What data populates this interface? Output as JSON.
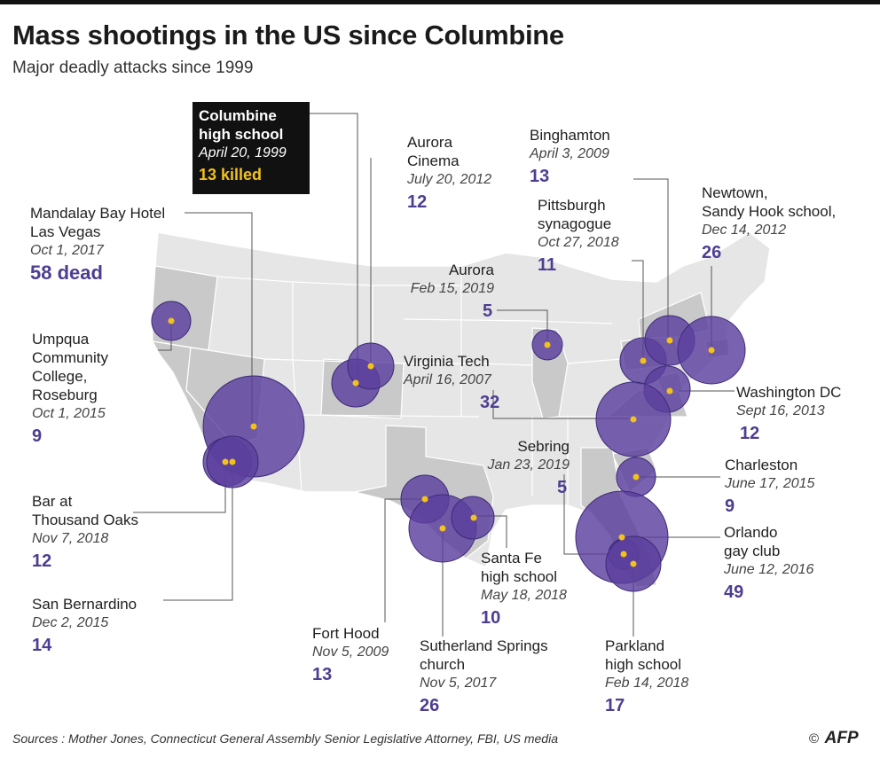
{
  "header": {
    "title": "Mass shootings in the US since Columbine",
    "subtitle": "Major deadly attacks since 1999"
  },
  "colors": {
    "bubble_fill": "#5b3f9e",
    "bubble_stroke": "#3d2a78",
    "marker_dot": "#f2c21b",
    "highlight_state": "#c9c9c9",
    "other_state": "#e6e6e6",
    "label_number": "#4e3d91",
    "columbine_bg": "#111111",
    "columbine_count": "#f2c21b"
  },
  "columbine": {
    "name_line1": "Columbine",
    "name_line2": "high school",
    "date": "April 20, 1999",
    "killed": "13 killed"
  },
  "events": [
    {
      "id": "mandalay",
      "name1": "Mandalay Bay Hotel",
      "name2": "Las Vegas",
      "date": "Oct 1, 2017",
      "count": "58 dead",
      "victims": 58
    },
    {
      "id": "umpqua",
      "name1": "Umpqua",
      "name2": "Community",
      "name3": "College,",
      "name4": "Roseburg",
      "date": "Oct 1, 2015",
      "count": "9",
      "victims": 9
    },
    {
      "id": "thousandoaks",
      "name1": "Bar at",
      "name2": "Thousand Oaks",
      "date": "Nov 7, 2018",
      "count": "12",
      "victims": 12
    },
    {
      "id": "sanbernardino",
      "name1": "San Bernardino",
      "date": "Dec 2, 2015",
      "count": "14",
      "victims": 14
    },
    {
      "id": "auroracinema",
      "name1": "Aurora",
      "name2": "Cinema",
      "date": "July 20, 2012",
      "count": "12",
      "victims": 12
    },
    {
      "id": "binghamton",
      "name1": "Binghamton",
      "date": "April 3, 2009",
      "count": "13",
      "victims": 13
    },
    {
      "id": "pittsburgh",
      "name1": "Pittsburgh",
      "name2": "synagogue",
      "date": "Oct 27, 2018",
      "count": "11",
      "victims": 11
    },
    {
      "id": "newtown",
      "name1": "Newtown,",
      "name2": "Sandy Hook school,",
      "date": "Dec 14, 2012",
      "count": "26",
      "victims": 26
    },
    {
      "id": "aurora2019",
      "name1": "Aurora",
      "date": "Feb 15, 2019",
      "count": "5",
      "victims": 5
    },
    {
      "id": "virginiatech",
      "name1": "Virginia Tech",
      "date": "April 16, 2007",
      "count": "32",
      "victims": 32
    },
    {
      "id": "washington",
      "name1": "Washington DC",
      "date": "Sept 16, 2013",
      "count": "12",
      "victims": 12
    },
    {
      "id": "sebring",
      "name1": "Sebring",
      "date": "Jan 23, 2019",
      "count": "5",
      "victims": 5
    },
    {
      "id": "charleston",
      "name1": "Charleston",
      "date": "June 17, 2015",
      "count": "9",
      "victims": 9
    },
    {
      "id": "orlando",
      "name1": "Orlando",
      "name2": "gay club",
      "date": "June 12, 2016",
      "count": "49",
      "victims": 49
    },
    {
      "id": "santafe",
      "name1": "Santa Fe",
      "name2": "high school",
      "date": "May 18, 2018",
      "count": "10",
      "victims": 10
    },
    {
      "id": "forthood",
      "name1": "Fort Hood",
      "date": "Nov 5, 2009",
      "count": "13",
      "victims": 13
    },
    {
      "id": "sutherland",
      "name1": "Sutherland Springs",
      "name2": "church",
      "date": "Nov 5, 2017",
      "count": "26",
      "victims": 26
    },
    {
      "id": "parkland",
      "name1": "Parkland",
      "name2": "high school",
      "date": "Feb 14, 2018",
      "count": "17",
      "victims": 17
    }
  ],
  "footer": {
    "sources": "Sources : Mother Jones, Connecticut General Assembly Senior Legislative Attorney, FBI, US media",
    "copyright": "©",
    "brand": "AFP"
  }
}
